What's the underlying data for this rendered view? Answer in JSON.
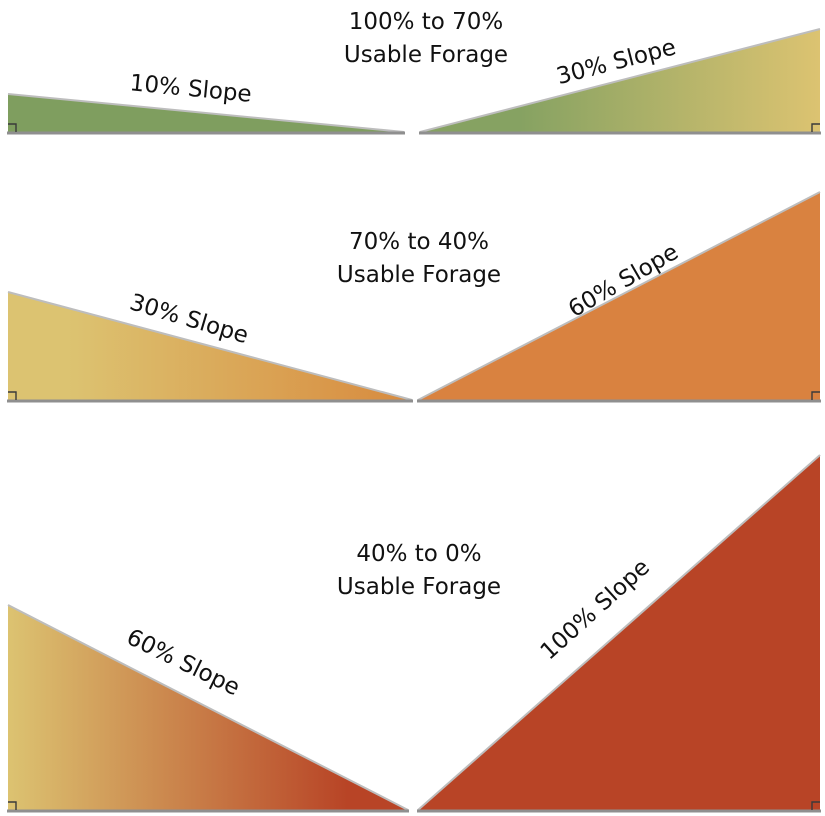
{
  "rows": [
    {
      "forage_line1": "100% to 70%",
      "forage_line2": "Usable Forage",
      "left_slope_label": "10% Slope",
      "right_slope_label": "30% Slope",
      "colors": {
        "left_start": "#7f9e5f",
        "left_end": "#7f9e5f",
        "right_start": "#86a262",
        "right_end": "#dcc371"
      }
    },
    {
      "forage_line1": "70% to 40%",
      "forage_line2": "Usable Forage",
      "left_slope_label": "30% Slope",
      "right_slope_label": "60% Slope",
      "colors": {
        "left_start": "#dcc371",
        "left_end": "#d88a3e",
        "right_start": "#d98240",
        "right_end": "#d98240"
      }
    },
    {
      "forage_line1": "40% to 0%",
      "forage_line2": "Usable Forage",
      "left_slope_label": "60% Slope",
      "right_slope_label": "100% Slope",
      "colors": {
        "left_start": "#dcc371",
        "left_end": "#b84426",
        "right_start": "#b84426",
        "right_end": "#b84426"
      }
    }
  ]
}
